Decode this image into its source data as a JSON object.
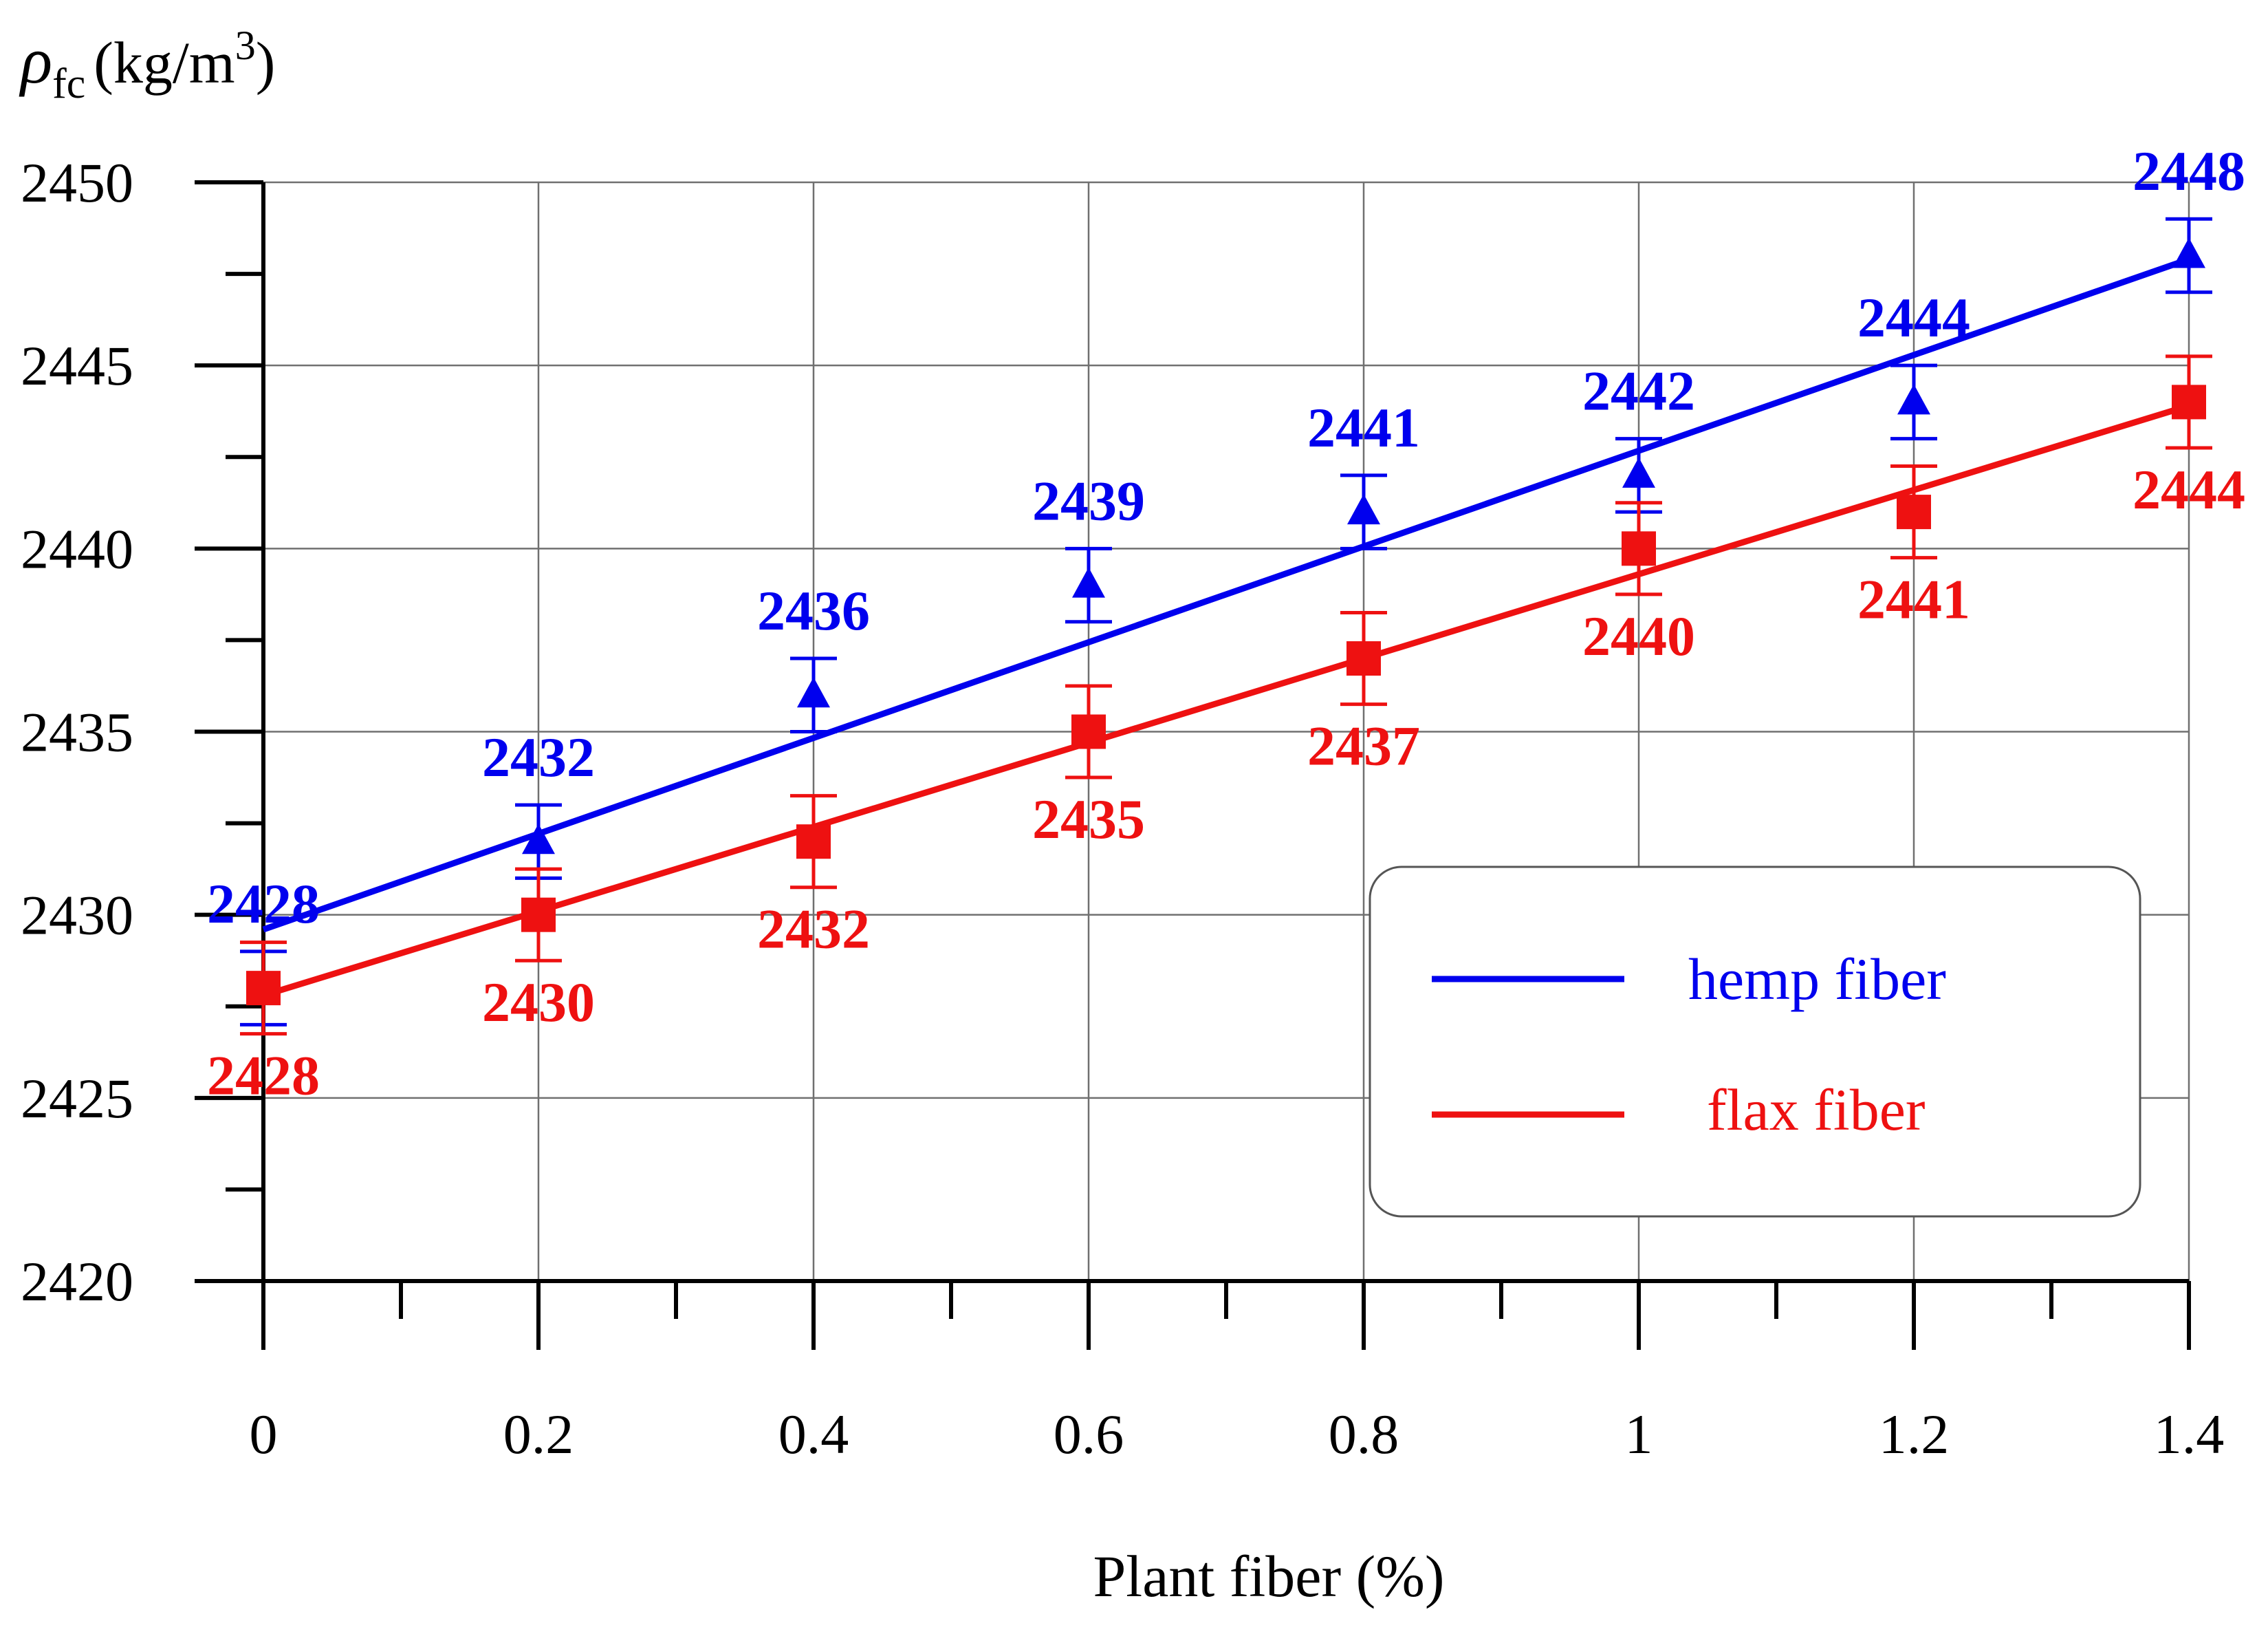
{
  "chart_data": {
    "type": "line",
    "title": "",
    "xlabel": "Plant fiber (%)",
    "ylabel": {
      "symbol": "ρ",
      "subscript": "fc",
      "unit_prefix": "(kg/m",
      "unit_power": "3",
      "unit_suffix": ")"
    },
    "x": [
      0,
      0.2,
      0.4,
      0.6,
      0.8,
      1,
      1.2,
      1.4
    ],
    "x_tick_labels": [
      "0",
      "0.2",
      "0.4",
      "0.6",
      "0.8",
      "1",
      "1.2",
      "1.4"
    ],
    "xlim": [
      0,
      1.4
    ],
    "y_ticks": [
      2420,
      2425,
      2430,
      2435,
      2440,
      2445,
      2450
    ],
    "y_tick_labels": [
      "2420",
      "2425",
      "2430",
      "2435",
      "2440",
      "2445",
      "2450"
    ],
    "ylim": [
      2420,
      2450
    ],
    "grid": true,
    "legend_position": "bottom-right",
    "series": [
      {
        "name": "hemp fiber",
        "color": "#0000ee",
        "marker": "triangle",
        "values": [
          2428,
          2432,
          2436,
          2439,
          2441,
          2442,
          2444,
          2448
        ],
        "labels": [
          "2428",
          "2432",
          "2436",
          "2439",
          "2441",
          "2442",
          "2444",
          "2448"
        ],
        "error": [
          1,
          1,
          1,
          1,
          1,
          1,
          1,
          1
        ],
        "trendline": [
          2429.6,
          2447.9
        ]
      },
      {
        "name": "flax fiber",
        "color": "#ee1111",
        "marker": "square",
        "values": [
          2428,
          2430,
          2432,
          2435,
          2437,
          2440,
          2441,
          2444
        ],
        "labels": [
          "2428",
          "2430",
          "2432",
          "2435",
          "2437",
          "2440",
          "2441",
          "2444"
        ],
        "error": [
          1.25,
          1.25,
          1.25,
          1.25,
          1.25,
          1.25,
          1.25,
          1.25
        ],
        "trendline": [
          2427.8,
          2443.9
        ]
      }
    ]
  }
}
